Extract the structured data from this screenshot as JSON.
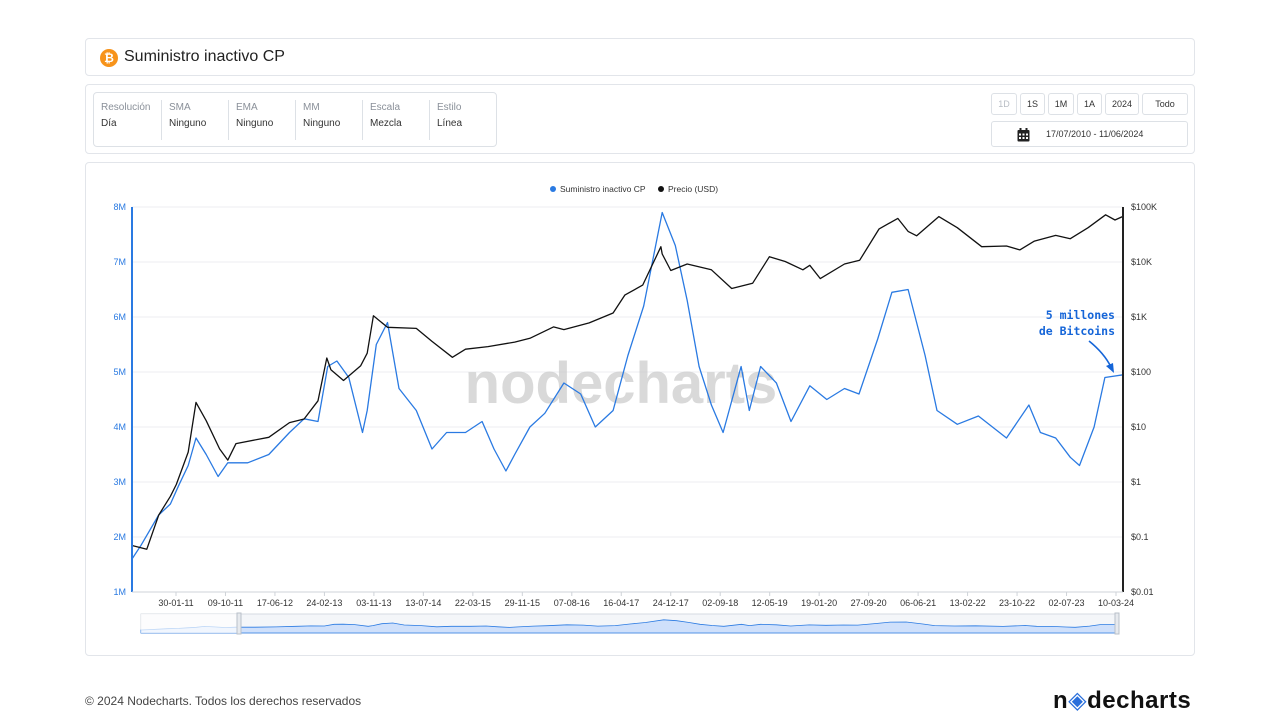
{
  "title": "Suministro inactivo CP",
  "title_icon": "bitcoin-icon",
  "settings": [
    {
      "label": "Resolución",
      "value": "Día"
    },
    {
      "label": "SMA",
      "value": "Ninguno"
    },
    {
      "label": "EMA",
      "value": "Ninguno"
    },
    {
      "label": "MM",
      "value": "Ninguno"
    },
    {
      "label": "Escala",
      "value": "Mezcla"
    },
    {
      "label": "Estilo",
      "value": "Línea"
    }
  ],
  "ranges": [
    "1D",
    "1S",
    "1M",
    "1A",
    "2024",
    "Todo"
  ],
  "date_range": "17/07/2010 - 11/06/2024",
  "chart_data": {
    "type": "line",
    "legend": [
      "Suministro inactivo CP",
      "Precio (USD)"
    ],
    "legend_placement": "top-center",
    "colors": {
      "supply": "#2a7ae2",
      "price": "#111111"
    },
    "x_ticks": [
      "30-01-11",
      "09-10-11",
      "17-06-12",
      "24-02-13",
      "03-11-13",
      "13-07-14",
      "22-03-15",
      "29-11-15",
      "07-08-16",
      "16-04-17",
      "24-12-17",
      "02-09-18",
      "12-05-19",
      "19-01-20",
      "27-09-20",
      "06-06-21",
      "13-02-22",
      "23-10-22",
      "02-07-23",
      "10-03-24"
    ],
    "x_range": [
      "2010-07-17",
      "2024-06-11"
    ],
    "y_left_ticks": [
      "1M",
      "2M",
      "3M",
      "4M",
      "5M",
      "6M",
      "7M",
      "8M"
    ],
    "y_left_range": [
      1000000,
      8000000
    ],
    "y_right_ticks": [
      "$0.01",
      "$0.1",
      "$1",
      "$10",
      "$100",
      "$1K",
      "$10K",
      "$100K"
    ],
    "y_right_range": [
      0.01,
      100000
    ],
    "y_right_scale": "log",
    "grid": true,
    "series": [
      {
        "name": "Suministro inactivo CP",
        "axis": "left",
        "points": [
          [
            "2010-07-17",
            1600000.0
          ],
          [
            "2010-09-01",
            1850000.0
          ],
          [
            "2010-12-01",
            2400000.0
          ],
          [
            "2011-01-30",
            2600000.0
          ],
          [
            "2011-03-15",
            2950000.0
          ],
          [
            "2011-05-01",
            3300000.0
          ],
          [
            "2011-06-10",
            3800000.0
          ],
          [
            "2011-08-01",
            3500000.0
          ],
          [
            "2011-10-01",
            3100000.0
          ],
          [
            "2011-11-20",
            3350000.0
          ],
          [
            "2012-03-01",
            3350000.0
          ],
          [
            "2012-06-17",
            3500000.0
          ],
          [
            "2012-10-01",
            3900000.0
          ],
          [
            "2012-12-15",
            4150000.0
          ],
          [
            "2013-02-24",
            4100000.0
          ],
          [
            "2013-04-15",
            5100000.0
          ],
          [
            "2013-06-01",
            5200000.0
          ],
          [
            "2013-08-01",
            4900000.0
          ],
          [
            "2013-10-10",
            3900000.0
          ],
          [
            "2013-11-03",
            4300000.0
          ],
          [
            "2013-12-20",
            5500000.0
          ],
          [
            "2014-02-15",
            5900000.0
          ],
          [
            "2014-04-15",
            4700000.0
          ],
          [
            "2014-07-13",
            4300000.0
          ],
          [
            "2014-10-01",
            3600000.0
          ],
          [
            "2014-12-15",
            3900000.0
          ],
          [
            "2015-03-22",
            3900000.0
          ],
          [
            "2015-06-15",
            4100000.0
          ],
          [
            "2015-08-15",
            3600000.0
          ],
          [
            "2015-10-15",
            3200000.0
          ],
          [
            "2015-11-29",
            3500000.0
          ],
          [
            "2016-02-15",
            4000000.0
          ],
          [
            "2016-05-01",
            4250000.0
          ],
          [
            "2016-08-07",
            4800000.0
          ],
          [
            "2016-11-01",
            4600000.0
          ],
          [
            "2017-01-15",
            4000000.0
          ],
          [
            "2017-04-16",
            4300000.0
          ],
          [
            "2017-07-01",
            5300000.0
          ],
          [
            "2017-09-20",
            6200000.0
          ],
          [
            "2017-12-24",
            7900000.0
          ],
          [
            "2018-03-01",
            7300000.0
          ],
          [
            "2018-05-01",
            6300000.0
          ],
          [
            "2018-07-01",
            5100000.0
          ],
          [
            "2018-09-02",
            4400000.0
          ],
          [
            "2018-11-01",
            3900000.0
          ],
          [
            "2019-02-01",
            5100000.0
          ],
          [
            "2019-03-15",
            4300000.0
          ],
          [
            "2019-05-12",
            5100000.0
          ],
          [
            "2019-08-01",
            4800000.0
          ],
          [
            "2019-10-15",
            4100000.0
          ],
          [
            "2020-01-19",
            4750000.0
          ],
          [
            "2020-04-15",
            4500000.0
          ],
          [
            "2020-07-15",
            4700000.0
          ],
          [
            "2020-09-27",
            4600000.0
          ],
          [
            "2021-01-01",
            5600000.0
          ],
          [
            "2021-03-15",
            6450000.0
          ],
          [
            "2021-06-06",
            6500000.0
          ],
          [
            "2021-09-01",
            5300000.0
          ],
          [
            "2021-11-01",
            4300000.0
          ],
          [
            "2022-02-13",
            4050000.0
          ],
          [
            "2022-06-01",
            4200000.0
          ],
          [
            "2022-10-23",
            3800000.0
          ],
          [
            "2023-02-15",
            4400000.0
          ],
          [
            "2023-04-15",
            3900000.0
          ],
          [
            "2023-07-02",
            3800000.0
          ],
          [
            "2023-09-15",
            3450000.0
          ],
          [
            "2023-11-01",
            3300000.0
          ],
          [
            "2024-01-15",
            4000000.0
          ],
          [
            "2024-03-10",
            4900000.0
          ],
          [
            "2024-06-11",
            4950000.0
          ]
        ]
      },
      {
        "name": "Precio (USD)",
        "axis": "right",
        "points": [
          [
            "2010-07-17",
            0.07
          ],
          [
            "2010-10-01",
            0.06
          ],
          [
            "2010-12-01",
            0.25
          ],
          [
            "2011-01-30",
            0.55
          ],
          [
            "2011-03-01",
            0.9
          ],
          [
            "2011-05-01",
            3.5
          ],
          [
            "2011-06-10",
            28
          ],
          [
            "2011-08-01",
            13
          ],
          [
            "2011-10-09",
            4
          ],
          [
            "2011-11-20",
            2.5
          ],
          [
            "2012-01-01",
            5
          ],
          [
            "2012-06-17",
            6.5
          ],
          [
            "2012-10-01",
            12
          ],
          [
            "2012-12-15",
            14
          ],
          [
            "2013-02-24",
            30
          ],
          [
            "2013-04-10",
            180
          ],
          [
            "2013-05-01",
            110
          ],
          [
            "2013-07-05",
            70
          ],
          [
            "2013-10-01",
            130
          ],
          [
            "2013-11-03",
            220
          ],
          [
            "2013-12-05",
            1050
          ],
          [
            "2014-02-15",
            650
          ],
          [
            "2014-07-13",
            620
          ],
          [
            "2014-10-01",
            360
          ],
          [
            "2015-01-14",
            185
          ],
          [
            "2015-03-22",
            260
          ],
          [
            "2015-07-15",
            290
          ],
          [
            "2015-11-29",
            350
          ],
          [
            "2016-02-15",
            410
          ],
          [
            "2016-06-15",
            660
          ],
          [
            "2016-08-07",
            590
          ],
          [
            "2016-12-15",
            780
          ],
          [
            "2017-04-16",
            1180
          ],
          [
            "2017-06-15",
            2500
          ],
          [
            "2017-09-15",
            3800
          ],
          [
            "2017-12-17",
            19000
          ],
          [
            "2017-12-24",
            14000
          ],
          [
            "2018-02-06",
            7000
          ],
          [
            "2018-05-01",
            9200
          ],
          [
            "2018-09-02",
            7200
          ],
          [
            "2018-12-15",
            3300
          ],
          [
            "2019-04-01",
            4100
          ],
          [
            "2019-06-26",
            12500
          ],
          [
            "2019-09-15",
            10200
          ],
          [
            "2019-12-15",
            7200
          ],
          [
            "2020-01-19",
            8700
          ],
          [
            "2020-03-13",
            5000
          ],
          [
            "2020-07-15",
            9200
          ],
          [
            "2020-10-01",
            10800
          ],
          [
            "2021-01-08",
            40000
          ],
          [
            "2021-04-14",
            62000
          ],
          [
            "2021-06-06",
            36000
          ],
          [
            "2021-07-20",
            30000
          ],
          [
            "2021-11-10",
            67000
          ],
          [
            "2022-02-13",
            42000
          ],
          [
            "2022-06-18",
            19000
          ],
          [
            "2022-10-23",
            19500
          ],
          [
            "2022-12-30",
            16600
          ],
          [
            "2023-03-15",
            24000
          ],
          [
            "2023-07-02",
            30500
          ],
          [
            "2023-09-15",
            26500
          ],
          [
            "2023-12-15",
            42000
          ],
          [
            "2024-03-14",
            72000
          ],
          [
            "2024-05-01",
            58000
          ],
          [
            "2024-06-11",
            67500
          ]
        ]
      }
    ],
    "annotation": "5 millones de Bitcoins"
  },
  "watermark": "nodecharts",
  "footer": {
    "copyright": "© 2024 Nodecharts. Todos los derechos reservados",
    "logo": "nodecharts"
  }
}
